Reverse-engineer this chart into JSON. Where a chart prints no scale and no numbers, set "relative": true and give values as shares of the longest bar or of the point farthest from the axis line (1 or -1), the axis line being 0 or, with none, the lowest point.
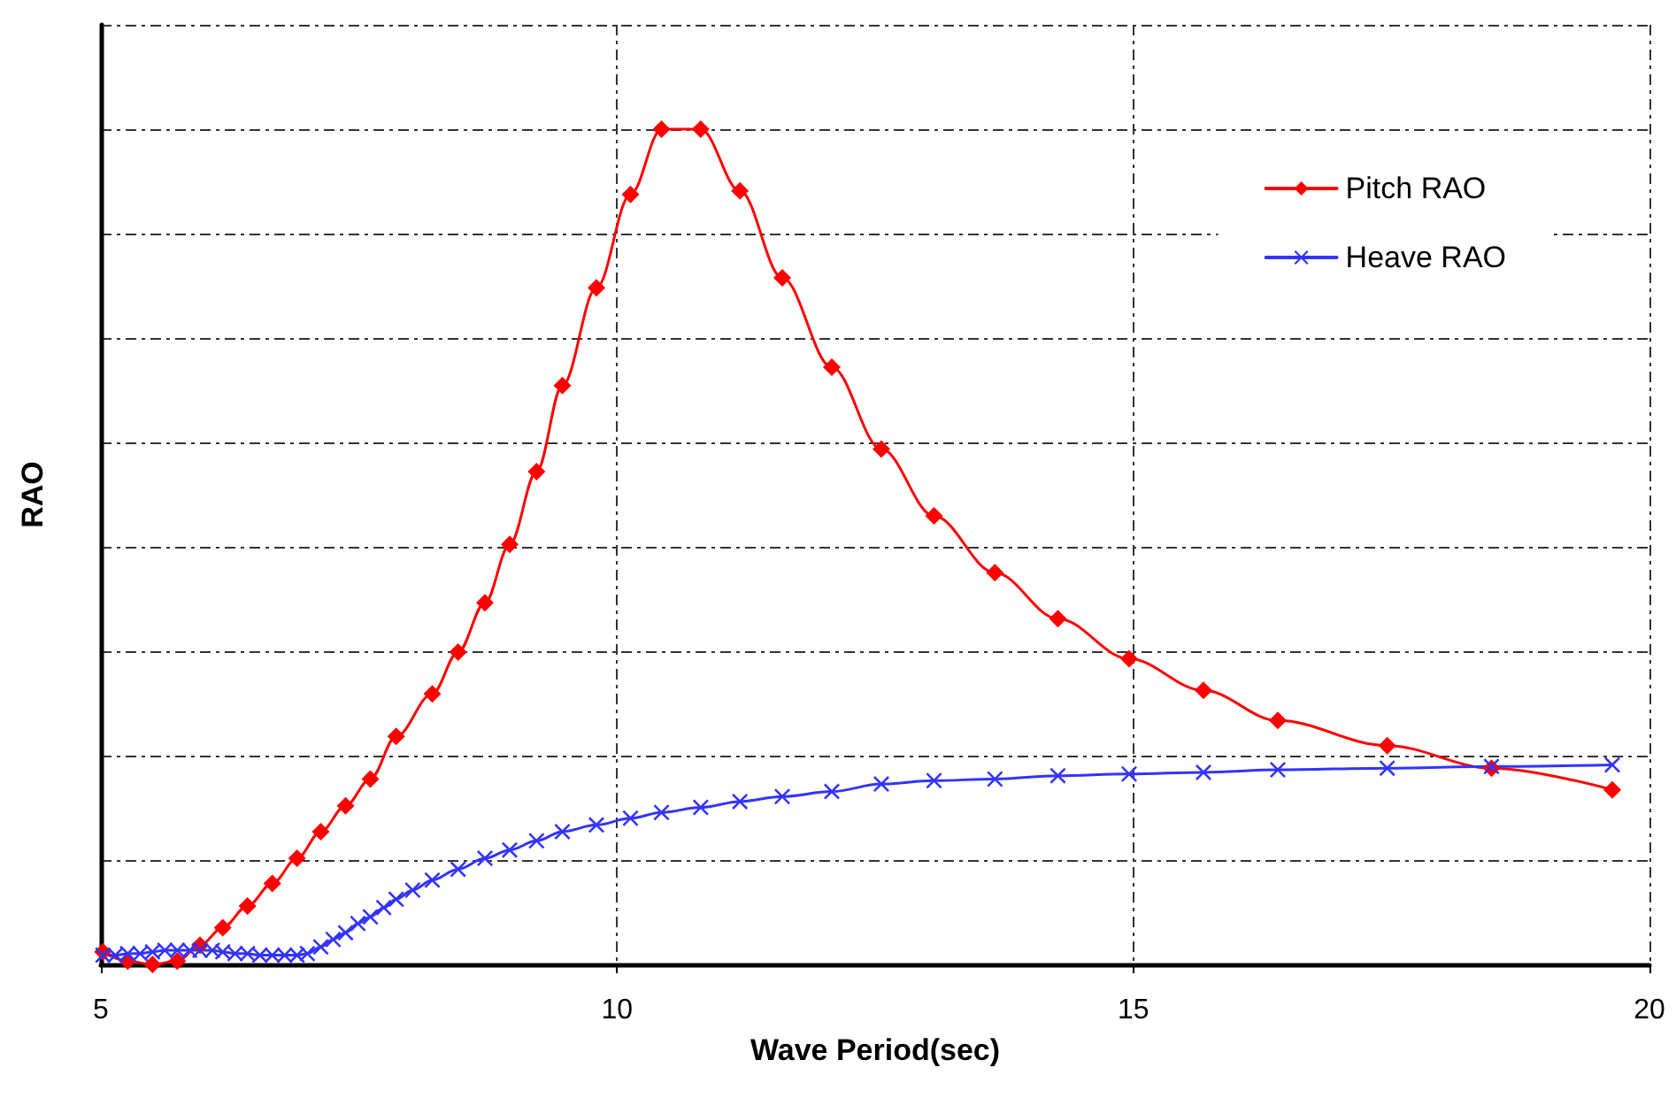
{
  "chart_data": {
    "type": "line",
    "relative": true,
    "xlabel": "Wave Period(sec)",
    "ylabel": "RAO",
    "xlim": [
      5,
      20
    ],
    "xticks": [
      5,
      10,
      15,
      20
    ],
    "grid": true,
    "legend": "top right",
    "line_style": "solid",
    "series": [
      {
        "name": "Pitch RAO",
        "color": "#ff0000",
        "marker": "diamond",
        "x": [
          5.02,
          5.26,
          5.5,
          5.74,
          5.96,
          6.18,
          6.42,
          6.66,
          6.9,
          7.13,
          7.37,
          7.61,
          7.86,
          8.21,
          8.46,
          8.72,
          8.96,
          9.22,
          9.47,
          9.8,
          10.13,
          10.43,
          10.81,
          11.19,
          11.6,
          12.08,
          12.56,
          13.07,
          13.66,
          14.27,
          14.96,
          15.68,
          16.4,
          17.46,
          18.47,
          19.64
        ],
        "values": [
          0.015,
          0.004,
          0,
          0.004,
          0.023,
          0.044,
          0.07,
          0.097,
          0.127,
          0.159,
          0.19,
          0.222,
          0.273,
          0.324,
          0.374,
          0.433,
          0.503,
          0.59,
          0.693,
          0.81,
          0.922,
          1,
          1,
          0.926,
          0.822,
          0.715,
          0.617,
          0.537,
          0.469,
          0.414,
          0.366,
          0.328,
          0.292,
          0.262,
          0.235,
          0.209
        ]
      },
      {
        "name": "Heave RAO",
        "color": "#3333ff",
        "marker": "cross",
        "x": [
          5.02,
          5.14,
          5.26,
          5.38,
          5.5,
          5.62,
          5.74,
          5.86,
          5.96,
          6.08,
          6.18,
          6.3,
          6.42,
          6.54,
          6.66,
          6.78,
          6.9,
          7.0,
          7.13,
          7.25,
          7.37,
          7.49,
          7.61,
          7.74,
          7.86,
          8.02,
          8.21,
          8.46,
          8.72,
          8.96,
          9.22,
          9.47,
          9.8,
          10.13,
          10.43,
          10.81,
          11.19,
          11.6,
          12.08,
          12.56,
          13.07,
          13.66,
          14.27,
          14.96,
          15.68,
          16.4,
          17.46,
          18.47,
          19.64
        ],
        "values": [
          0.011,
          0.011,
          0.013,
          0.013,
          0.015,
          0.017,
          0.017,
          0.017,
          0.017,
          0.017,
          0.015,
          0.013,
          0.013,
          0.011,
          0.011,
          0.011,
          0.011,
          0.013,
          0.021,
          0.03,
          0.038,
          0.049,
          0.057,
          0.068,
          0.078,
          0.089,
          0.101,
          0.114,
          0.127,
          0.137,
          0.148,
          0.159,
          0.167,
          0.175,
          0.182,
          0.188,
          0.195,
          0.201,
          0.207,
          0.216,
          0.22,
          0.222,
          0.226,
          0.228,
          0.23,
          0.233,
          0.235,
          0.237,
          0.239
        ]
      }
    ]
  }
}
